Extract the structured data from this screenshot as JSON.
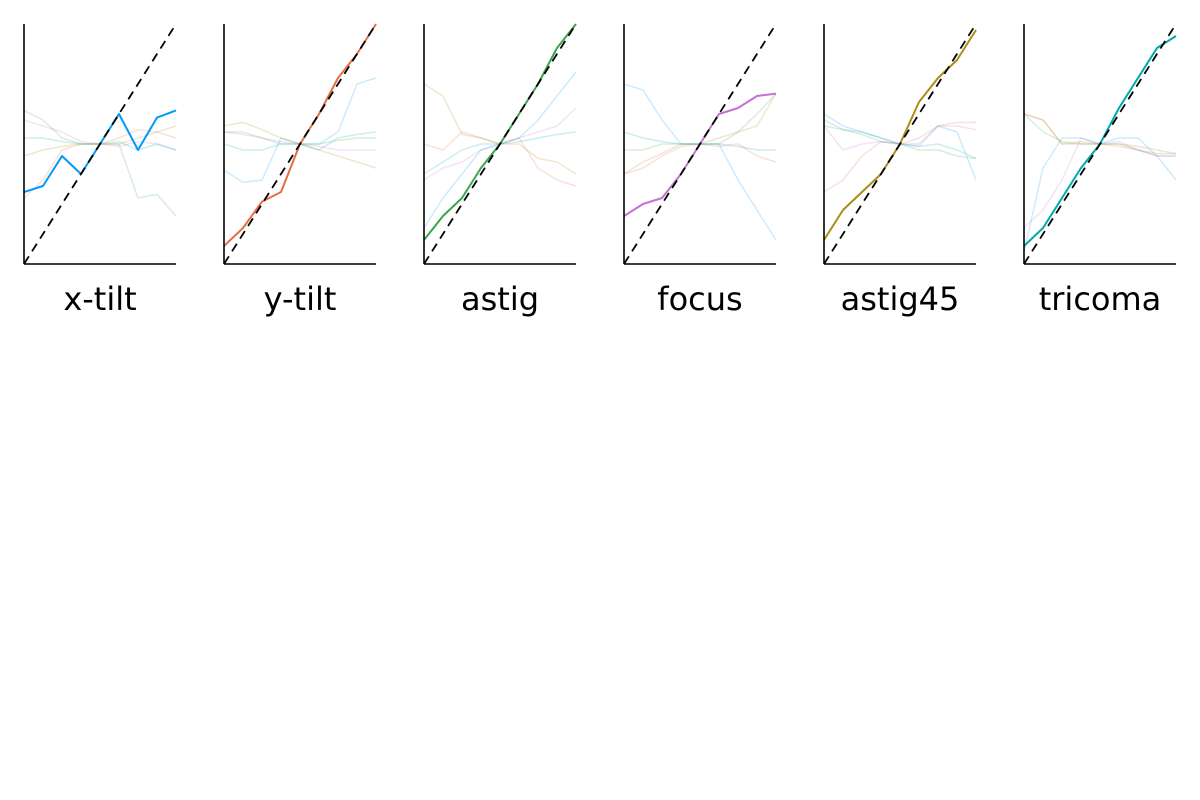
{
  "chart_data": {
    "type": "line",
    "panel_count": 6,
    "xlim": [
      -1,
      1
    ],
    "ylim": [
      -1,
      1
    ],
    "grid": false,
    "legend": "none",
    "reference_line": {
      "style": "dashed",
      "color": "#000000",
      "slope": 1
    },
    "x": [
      -1.0,
      -0.75,
      -0.5,
      -0.25,
      0.0,
      0.25,
      0.5,
      0.75,
      1.0
    ],
    "colors": [
      "#009AFA",
      "#E26F46",
      "#3DA44E",
      "#C371D2",
      "#AC8D18",
      "#00A9AD"
    ],
    "panels": [
      {
        "label": "x-tilt",
        "series": [
          [
            -0.4,
            -0.35,
            -0.1,
            -0.25,
            0.0,
            0.25,
            -0.05,
            0.22,
            0.28
          ],
          [
            -0.45,
            -0.3,
            -0.05,
            0.0,
            0.0,
            0.05,
            0.12,
            0.1,
            0.05
          ],
          [
            0.28,
            0.2,
            0.05,
            0.0,
            0.0,
            0.0,
            -0.45,
            -0.42,
            -0.6
          ],
          [
            0.2,
            0.15,
            0.1,
            0.02,
            0.0,
            -0.02,
            0.02,
            0.0,
            -0.05
          ],
          [
            -0.1,
            -0.05,
            -0.02,
            0.0,
            0.0,
            0.0,
            0.05,
            0.1,
            0.15
          ],
          [
            0.05,
            0.05,
            0.02,
            0.0,
            0.0,
            0.02,
            -0.05,
            0.0,
            -0.05
          ]
        ]
      },
      {
        "label": "y-tilt",
        "series": [
          [
            -0.22,
            -0.32,
            -0.3,
            0.05,
            0.0,
            0.0,
            0.1,
            0.5,
            0.55
          ],
          [
            -0.85,
            -0.7,
            -0.48,
            -0.4,
            0.0,
            0.25,
            0.55,
            0.75,
            1.0
          ],
          [
            0.1,
            0.1,
            0.05,
            0.0,
            0.0,
            0.0,
            0.03,
            0.05,
            0.05
          ],
          [
            0.1,
            0.08,
            0.05,
            0.02,
            0.0,
            -0.02,
            -0.05,
            -0.05,
            -0.05
          ],
          [
            0.15,
            0.18,
            0.12,
            0.05,
            0.0,
            -0.05,
            -0.1,
            -0.15,
            -0.2
          ],
          [
            0.0,
            -0.05,
            -0.05,
            0.0,
            0.0,
            -0.05,
            0.05,
            0.08,
            0.1
          ]
        ]
      },
      {
        "label": "astig",
        "series": [
          [
            -0.7,
            -0.45,
            -0.25,
            -0.05,
            0.0,
            0.05,
            0.2,
            0.4,
            0.6
          ],
          [
            0.0,
            -0.05,
            0.1,
            0.05,
            0.0,
            0.05,
            -0.2,
            -0.3,
            -0.35
          ],
          [
            -0.8,
            -0.6,
            -0.45,
            -0.2,
            0.0,
            0.25,
            0.5,
            0.8,
            1.0
          ],
          [
            -0.3,
            -0.2,
            -0.15,
            -0.05,
            0.0,
            0.05,
            0.1,
            0.15,
            0.3
          ],
          [
            0.5,
            0.4,
            0.08,
            0.05,
            0.0,
            0.0,
            -0.12,
            -0.15,
            -0.25
          ],
          [
            -0.25,
            -0.15,
            -0.05,
            0.0,
            0.0,
            0.02,
            0.05,
            0.08,
            0.1
          ]
        ]
      },
      {
        "label": "focus",
        "series": [
          [
            0.5,
            0.45,
            0.2,
            0.0,
            0.0,
            0.0,
            -0.3,
            -0.55,
            -0.8
          ],
          [
            -0.25,
            -0.2,
            -0.1,
            -0.02,
            0.0,
            -0.02,
            0.0,
            -0.1,
            -0.15
          ],
          [
            -0.05,
            -0.05,
            0.0,
            0.0,
            0.0,
            0.0,
            0.1,
            0.25,
            0.42
          ],
          [
            -0.6,
            -0.5,
            -0.45,
            -0.25,
            0.0,
            0.25,
            0.3,
            0.4,
            0.42
          ],
          [
            -0.25,
            -0.15,
            -0.08,
            0.0,
            0.0,
            0.05,
            0.1,
            0.15,
            0.42
          ],
          [
            0.1,
            0.05,
            0.02,
            0.0,
            0.0,
            0.0,
            -0.02,
            -0.05,
            -0.05
          ]
        ]
      },
      {
        "label": "astig45",
        "series": [
          [
            0.25,
            0.15,
            0.1,
            0.05,
            0.0,
            0.0,
            0.15,
            0.1,
            -0.3
          ],
          [
            -0.4,
            -0.3,
            -0.1,
            0.02,
            0.0,
            0.05,
            0.15,
            0.18,
            0.18
          ],
          [
            0.2,
            0.12,
            0.08,
            0.02,
            0.0,
            -0.05,
            -0.05,
            -0.1,
            -0.12
          ],
          [
            0.15,
            -0.05,
            0.0,
            0.02,
            0.0,
            -0.02,
            0.15,
            0.15,
            0.12
          ],
          [
            -0.8,
            -0.55,
            -0.4,
            -0.25,
            0.0,
            0.35,
            0.55,
            0.7,
            0.95
          ],
          [
            0.15,
            0.12,
            0.1,
            0.05,
            0.0,
            -0.02,
            0.0,
            -0.05,
            -0.12
          ]
        ]
      },
      {
        "label": "tricoma",
        "series": [
          [
            -0.9,
            -0.2,
            0.05,
            0.05,
            0.0,
            0.05,
            0.05,
            -0.1,
            -0.3
          ],
          [
            0.25,
            0.2,
            0.0,
            0.0,
            0.0,
            -0.02,
            -0.05,
            -0.1,
            -0.1
          ],
          [
            0.25,
            0.1,
            0.02,
            0.0,
            0.0,
            0.0,
            -0.05,
            -0.08,
            -0.08
          ],
          [
            -0.7,
            -0.55,
            -0.3,
            0.05,
            0.0,
            0.02,
            -0.05,
            -0.1,
            -0.1
          ],
          [
            0.25,
            0.2,
            0.0,
            0.02,
            0.0,
            0.0,
            -0.02,
            -0.05,
            -0.08
          ],
          [
            -0.85,
            -0.7,
            -0.45,
            -0.2,
            0.0,
            0.3,
            0.55,
            0.8,
            0.9
          ]
        ]
      }
    ]
  }
}
